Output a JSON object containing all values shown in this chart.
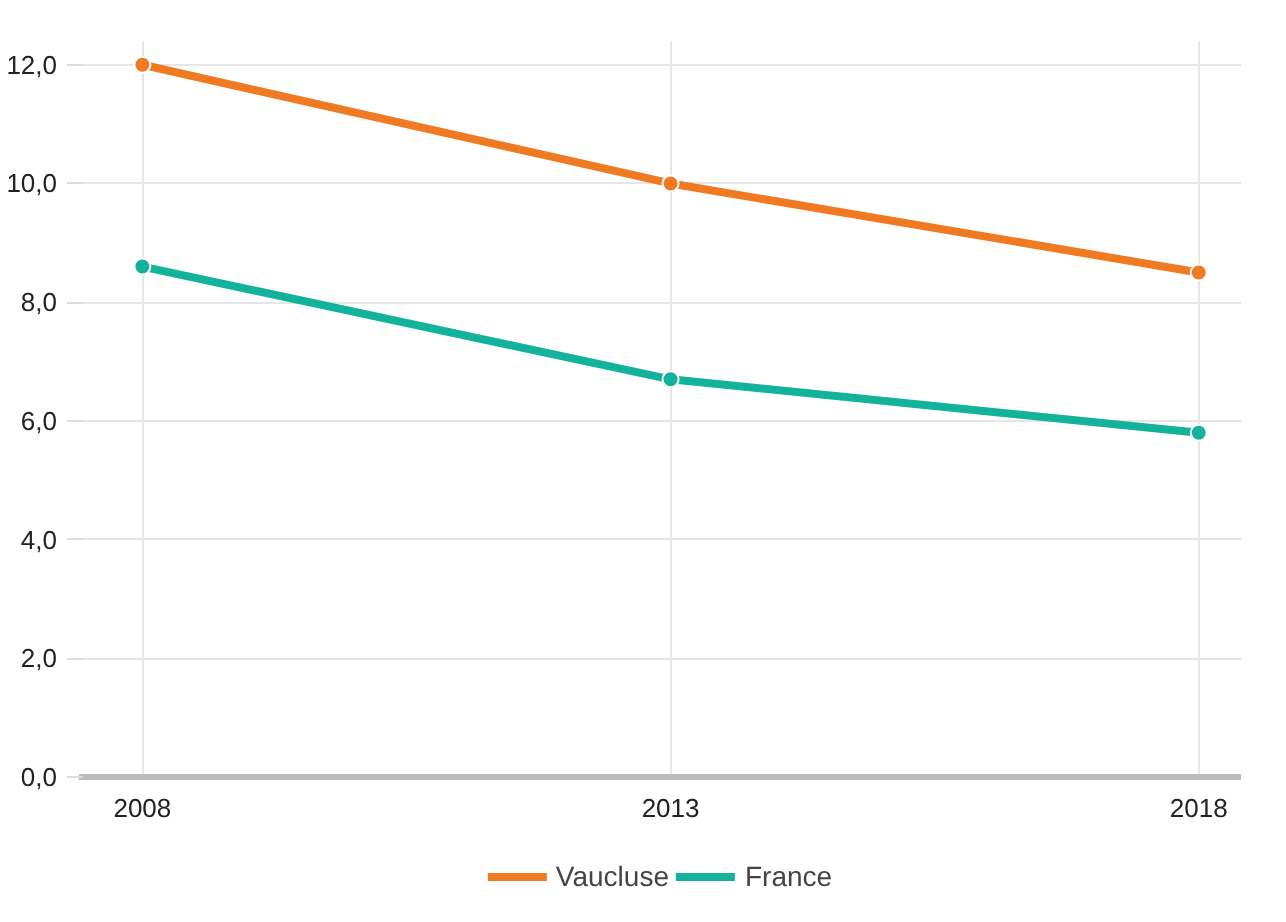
{
  "chart_data": {
    "type": "line",
    "categories": [
      "2008",
      "2013",
      "2018"
    ],
    "series": [
      {
        "name": "Vaucluse",
        "color": "#f07a22",
        "values": [
          12.0,
          10.0,
          8.5
        ]
      },
      {
        "name": "France",
        "color": "#13b29a",
        "values": [
          8.6,
          6.7,
          5.8
        ]
      }
    ],
    "ylim": [
      0,
      12.4
    ],
    "yticks": [
      {
        "value": 0,
        "label": "0,0"
      },
      {
        "value": 2,
        "label": "2,0"
      },
      {
        "value": 4,
        "label": "4,0"
      },
      {
        "value": 6,
        "label": "6,0"
      },
      {
        "value": 8,
        "label": "8,0"
      },
      {
        "value": 10,
        "label": "10,0"
      },
      {
        "value": 12,
        "label": "12,0"
      }
    ],
    "grid": true,
    "legend": "bottom",
    "marker": "circle",
    "line_style": "solid"
  }
}
